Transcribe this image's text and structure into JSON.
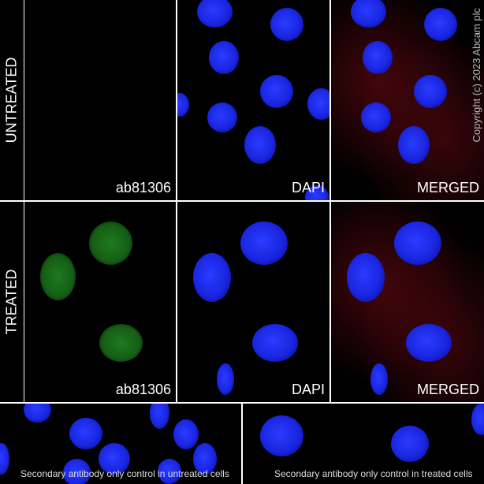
{
  "rows": {
    "untreated": "UNTREATED",
    "treated": "TREATED"
  },
  "panel_labels": {
    "antibody": "ab81306",
    "dapi": "DAPI",
    "merged": "MERGED"
  },
  "captions": {
    "untreated_control": "Secondary antibody only control in untreated cells",
    "treated_control": "Secondary antibody only control in treated cells"
  },
  "copyright": "Copyright (c) 2023 Abcam plc",
  "colors": {
    "dapi": "#1a26e0",
    "antibody": "#1f7a1f",
    "merged_red": "#780a14"
  }
}
